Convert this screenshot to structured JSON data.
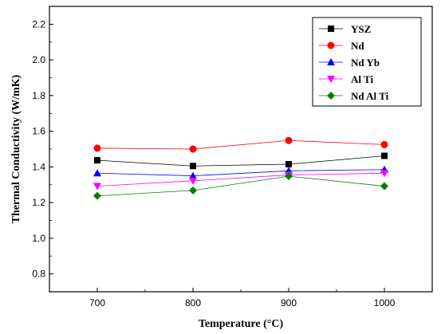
{
  "chart_data": {
    "type": "line",
    "title": "",
    "xlabel": "Temperature (°C)",
    "ylabel": "Thermal Conductivity (W/mK)",
    "x": [
      700,
      800,
      900,
      1000
    ],
    "x_ticks": [
      "700",
      "800",
      "900",
      "1000"
    ],
    "xlim": [
      650,
      1050
    ],
    "ylim": [
      0.7,
      2.3
    ],
    "y_ticks": [
      "0.8",
      "1.0",
      "1.2",
      "1.4",
      "1.6",
      "1.8",
      "2.0",
      "2.2"
    ],
    "y_tick_values": [
      0.8,
      1.0,
      1.2,
      1.4,
      1.6,
      1.8,
      2.0,
      2.2
    ],
    "grid": false,
    "legend_position": "top-right",
    "series": [
      {
        "name": "YSZ",
        "values": [
          1.437,
          1.405,
          1.415,
          1.462
        ],
        "color": "#000000",
        "marker": "square"
      },
      {
        "name": "Nd",
        "values": [
          1.505,
          1.5,
          1.548,
          1.525
        ],
        "color": "#ff0000",
        "marker": "circle"
      },
      {
        "name": "Nd Yb",
        "values": [
          1.365,
          1.35,
          1.378,
          1.385
        ],
        "color": "#0000ff",
        "marker": "triangle-up"
      },
      {
        "name": "Al Ti",
        "values": [
          1.292,
          1.322,
          1.355,
          1.365
        ],
        "color": "#ff00ff",
        "marker": "triangle-down"
      },
      {
        "name": "Nd  Al Ti",
        "values": [
          1.238,
          1.268,
          1.348,
          1.292
        ],
        "color": "#008000",
        "marker": "diamond"
      }
    ]
  }
}
